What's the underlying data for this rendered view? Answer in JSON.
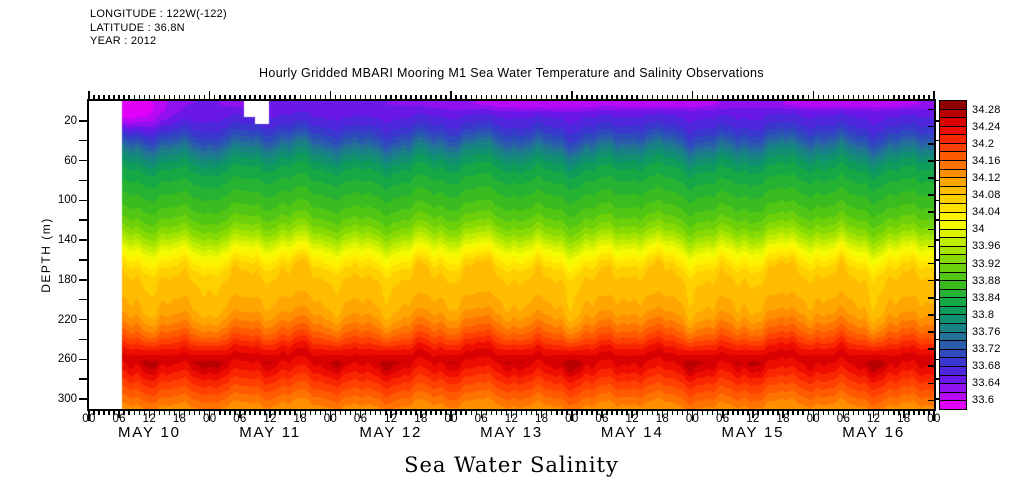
{
  "meta": {
    "longitude": "LONGITUDE : 122W(-122)",
    "latitude": "LATITUDE : 36.8N",
    "year": "YEAR : 2012"
  },
  "title": "Hourly Gridded MBARI Mooring M1 Sea Water Temperature and Salinity Observations",
  "footer_label": "Sea Water Salinity",
  "axes": {
    "y_label": "DEPTH (m)",
    "y_labeled_ticks": [
      20,
      60,
      100,
      140,
      180,
      220,
      260,
      300
    ],
    "y_minor_step": 20,
    "y_range": [
      0,
      310
    ],
    "x_hour_labels": [
      "00",
      "06",
      "12",
      "18"
    ],
    "x_final_label": "00",
    "x_day_labels": [
      "MAY 10",
      "MAY 11",
      "MAY 12",
      "MAY 13",
      "MAY 14",
      "MAY 15",
      "MAY 16"
    ],
    "x_range_hours": [
      0,
      168
    ]
  },
  "colorbar": {
    "tick_labels": [
      "34.28",
      "34.24",
      "34.2",
      "34.16",
      "34.12",
      "34.08",
      "34.04",
      "34",
      "33.96",
      "33.92",
      "33.88",
      "33.84",
      "33.8",
      "33.76",
      "33.72",
      "33.68",
      "33.64",
      "33.6"
    ],
    "value_range": [
      33.6,
      34.3
    ],
    "cell_step": 0.02
  },
  "palette": [
    [
      "33.60",
      "#E000F8"
    ],
    [
      "33.62",
      "#B808F4"
    ],
    [
      "33.64",
      "#9010F0"
    ],
    [
      "33.66",
      "#6A18E8"
    ],
    [
      "33.68",
      "#4E26DC"
    ],
    [
      "33.70",
      "#3A36CE"
    ],
    [
      "33.72",
      "#2F49BE"
    ],
    [
      "33.74",
      "#2A5CAC"
    ],
    [
      "33.76",
      "#237098"
    ],
    [
      "33.78",
      "#188284"
    ],
    [
      "33.80",
      "#109070"
    ],
    [
      "33.82",
      "#0F9C5A"
    ],
    [
      "33.84",
      "#17A846"
    ],
    [
      "33.86",
      "#26B232"
    ],
    [
      "33.88",
      "#3ABC20"
    ],
    [
      "33.90",
      "#52C614"
    ],
    [
      "33.92",
      "#6CD00A"
    ],
    [
      "33.94",
      "#88DA04"
    ],
    [
      "33.96",
      "#A4E400"
    ],
    [
      "33.98",
      "#C0EC00"
    ],
    [
      "34.00",
      "#DCF400"
    ],
    [
      "34.02",
      "#F4FA00"
    ],
    [
      "34.04",
      "#FFF200"
    ],
    [
      "34.06",
      "#FFE200"
    ],
    [
      "34.08",
      "#FFD000"
    ],
    [
      "34.10",
      "#FFBC00"
    ],
    [
      "34.12",
      "#FFA600"
    ],
    [
      "34.14",
      "#FF8E00"
    ],
    [
      "34.16",
      "#FF7400"
    ],
    [
      "34.18",
      "#FF5A00"
    ],
    [
      "34.20",
      "#FF4000"
    ],
    [
      "34.22",
      "#FA2600"
    ],
    [
      "34.24",
      "#EE0E00"
    ],
    [
      "34.26",
      "#D80000"
    ],
    [
      "34.28",
      "#B80000"
    ],
    [
      "34.30",
      "#900000"
    ]
  ],
  "chart_data": {
    "type": "heatmap",
    "title": "Hourly Gridded MBARI Mooring M1 Sea Water Temperature and Salinity Observations",
    "variable": "Sea Water Salinity",
    "x_axis": "Time, hourly, May 10 00:00 - May 17 00:00 2012, labels every 6 h",
    "y_axis": "Depth (m), 0-310, ticks every 20 m",
    "color_levels_range": [
      33.6,
      34.28
    ],
    "color_level_step": 0.04,
    "data_start_hour": 6.4,
    "depth_profile": {
      "depths": [
        0,
        10,
        20,
        30,
        40,
        50,
        60,
        70,
        80,
        90,
        100,
        110,
        120,
        130,
        140,
        150,
        160,
        170,
        180,
        190,
        200,
        210,
        220,
        230,
        240,
        250,
        260,
        270,
        280,
        290,
        300,
        310
      ],
      "salinity": [
        33.665,
        33.672,
        33.688,
        33.715,
        33.75,
        33.79,
        33.82,
        33.845,
        33.86,
        33.875,
        33.89,
        33.905,
        33.925,
        33.95,
        33.985,
        34.025,
        34.06,
        34.09,
        34.105,
        34.115,
        34.12,
        34.13,
        34.15,
        34.175,
        34.205,
        34.24,
        34.27,
        34.25,
        34.225,
        34.2,
        34.175,
        34.15
      ]
    },
    "displacement_6h": [
      -2,
      4,
      -7,
      3,
      -9,
      5,
      -3,
      8,
      -6,
      2,
      -8,
      6,
      -4,
      9,
      -5,
      3,
      -9,
      4,
      -2,
      7,
      -8,
      2,
      -6,
      8,
      -3,
      5,
      -9,
      3,
      -2
    ],
    "jitter": [
      [
        1.7,
        1.35,
        0.7
      ],
      [
        1.1,
        2.6,
        2.1
      ]
    ],
    "amp_profile": {
      "surface_min": 0.45,
      "ramp_depth": 40,
      "deep_start": 250,
      "deep_drop": 0.15,
      "deep_span": 60
    },
    "gaussians": [
      {
        "t": 7,
        "d": 8,
        "st": 6,
        "sd": 16,
        "dv": -0.075
      },
      {
        "t": 30,
        "d": 2,
        "st": 2.5,
        "sd": 3,
        "dv": -0.022
      },
      {
        "t": 90,
        "d": 2,
        "st": 15,
        "sd": 5,
        "dv": -0.042
      },
      {
        "t": 118,
        "d": 2,
        "st": 8,
        "sd": 4,
        "dv": -0.036
      },
      {
        "t": 143,
        "d": 2,
        "st": 6,
        "sd": 4,
        "dv": -0.034
      },
      {
        "t": 158,
        "d": 2,
        "st": 8,
        "sd": 4,
        "dv": -0.04
      }
    ],
    "wave_features": [
      {
        "d": 258,
        "sd": 11,
        "k": 0.034,
        "phase": "trough"
      },
      {
        "d": 163,
        "sd": 10,
        "k": 0.022,
        "phase": "crest"
      },
      {
        "d": 205,
        "sd": 22,
        "k": -0.018,
        "phase": "trough"
      }
    ],
    "missing": [
      {
        "t0": 30.8,
        "t1": 35.7,
        "d0": 0,
        "d1": 16
      },
      {
        "t0": 32.9,
        "t1": 35.7,
        "d0": 16,
        "d1": 23
      }
    ]
  }
}
